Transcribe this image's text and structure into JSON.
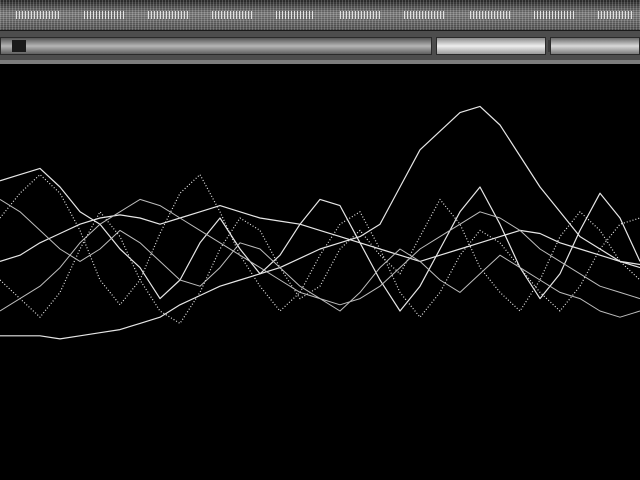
{
  "colors": {
    "background": "#000000",
    "trace": "#e6e6e6",
    "toolbar": "#4d4d4d"
  },
  "waveform": {
    "series": [
      {
        "style": "solid",
        "y": [
          0.72,
          0.74,
          0.76,
          0.7,
          0.62,
          0.58,
          0.5,
          0.44,
          0.34,
          0.4,
          0.52,
          0.6,
          0.5,
          0.42,
          0.48,
          0.58,
          0.66,
          0.64,
          0.52,
          0.4,
          0.3,
          0.38,
          0.5,
          0.62,
          0.7,
          0.58,
          0.44,
          0.34,
          0.42,
          0.56,
          0.68,
          0.6,
          0.46
        ]
      },
      {
        "style": "solid",
        "y": [
          0.46,
          0.48,
          0.52,
          0.55,
          0.58,
          0.6,
          0.61,
          0.6,
          0.58,
          0.6,
          0.62,
          0.64,
          0.62,
          0.6,
          0.59,
          0.58,
          0.56,
          0.54,
          0.52,
          0.5,
          0.48,
          0.46,
          0.48,
          0.5,
          0.52,
          0.54,
          0.56,
          0.55,
          0.52,
          0.5,
          0.48,
          0.46,
          0.45
        ]
      },
      {
        "style": "solid",
        "y": [
          0.22,
          0.22,
          0.22,
          0.21,
          0.22,
          0.23,
          0.24,
          0.26,
          0.28,
          0.32,
          0.35,
          0.38,
          0.4,
          0.42,
          0.44,
          0.47,
          0.5,
          0.52,
          0.54,
          0.58,
          0.7,
          0.82,
          0.88,
          0.94,
          0.96,
          0.9,
          0.8,
          0.7,
          0.62,
          0.54,
          0.5,
          0.46,
          0.44
        ]
      },
      {
        "style": "dot",
        "y": [
          0.6,
          0.68,
          0.74,
          0.68,
          0.56,
          0.4,
          0.32,
          0.4,
          0.55,
          0.68,
          0.74,
          0.62,
          0.48,
          0.38,
          0.3,
          0.36,
          0.48,
          0.58,
          0.62,
          0.5,
          0.36,
          0.28,
          0.36,
          0.48,
          0.56,
          0.52,
          0.44,
          0.36,
          0.3,
          0.38,
          0.5,
          0.58,
          0.6
        ]
      },
      {
        "style": "dot",
        "y": [
          0.4,
          0.34,
          0.28,
          0.36,
          0.5,
          0.62,
          0.54,
          0.4,
          0.3,
          0.26,
          0.36,
          0.5,
          0.6,
          0.56,
          0.44,
          0.34,
          0.38,
          0.5,
          0.56,
          0.48,
          0.42,
          0.54,
          0.66,
          0.58,
          0.44,
          0.36,
          0.3,
          0.4,
          0.54,
          0.62,
          0.56,
          0.46,
          0.4
        ]
      },
      {
        "style": "dim",
        "y": [
          0.66,
          0.62,
          0.56,
          0.5,
          0.46,
          0.5,
          0.56,
          0.52,
          0.46,
          0.4,
          0.38,
          0.44,
          0.52,
          0.5,
          0.44,
          0.38,
          0.34,
          0.3,
          0.36,
          0.44,
          0.5,
          0.46,
          0.4,
          0.36,
          0.42,
          0.48,
          0.44,
          0.4,
          0.36,
          0.34,
          0.3,
          0.28,
          0.3
        ]
      },
      {
        "style": "dim",
        "y": [
          0.3,
          0.34,
          0.38,
          0.44,
          0.52,
          0.58,
          0.62,
          0.66,
          0.64,
          0.6,
          0.56,
          0.52,
          0.48,
          0.44,
          0.4,
          0.36,
          0.34,
          0.32,
          0.34,
          0.38,
          0.44,
          0.5,
          0.54,
          0.58,
          0.62,
          0.6,
          0.56,
          0.5,
          0.46,
          0.42,
          0.38,
          0.36,
          0.34
        ]
      }
    ]
  }
}
